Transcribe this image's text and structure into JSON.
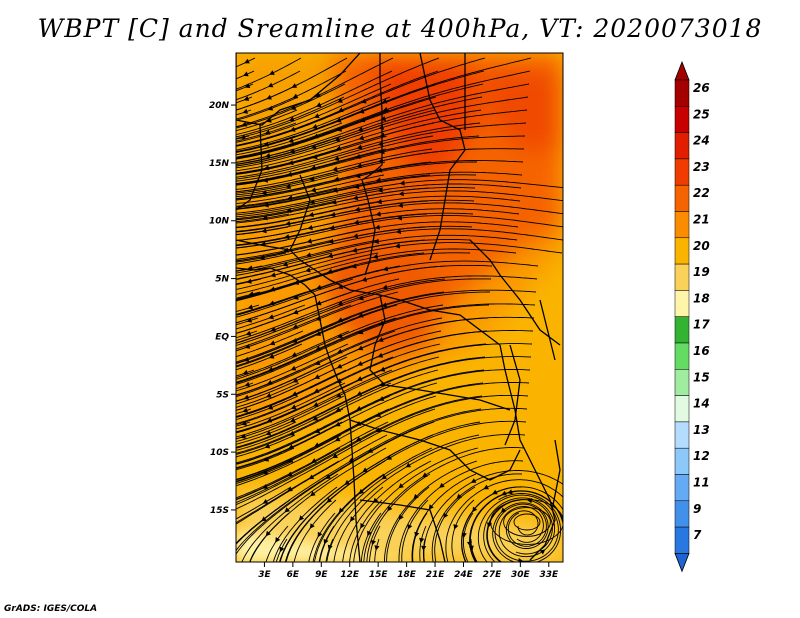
{
  "title": "WBPT [C] and Sreamline at 400hPa, VT: 2020073018",
  "credit": "GrADS: IGES/COLA",
  "map": {
    "lon_range": [
      0,
      34.5
    ],
    "lat_range": [
      -19.5,
      24.5
    ],
    "lat_ticks": [
      {
        "value": 20,
        "label": "20N"
      },
      {
        "value": 15,
        "label": "15N"
      },
      {
        "value": 10,
        "label": "10N"
      },
      {
        "value": 5,
        "label": "5N"
      },
      {
        "value": 0,
        "label": "EQ"
      },
      {
        "value": -5,
        "label": "5S"
      },
      {
        "value": -10,
        "label": "10S"
      },
      {
        "value": -15,
        "label": "15S"
      }
    ],
    "lon_ticks": [
      {
        "value": 3,
        "label": "3E"
      },
      {
        "value": 6,
        "label": "6E"
      },
      {
        "value": 9,
        "label": "9E"
      },
      {
        "value": 12,
        "label": "12E"
      },
      {
        "value": 15,
        "label": "15E"
      },
      {
        "value": 18,
        "label": "18E"
      },
      {
        "value": 21,
        "label": "21E"
      },
      {
        "value": 24,
        "label": "24E"
      },
      {
        "value": 27,
        "label": "27E"
      },
      {
        "value": 30,
        "label": "30E"
      },
      {
        "value": 33,
        "label": "33E"
      }
    ]
  },
  "colorbar": {
    "levels": [
      {
        "label": "26",
        "color": "#a50000"
      },
      {
        "label": "25",
        "color": "#c80000"
      },
      {
        "label": "24",
        "color": "#e11e00"
      },
      {
        "label": "23",
        "color": "#f03c00"
      },
      {
        "label": "22",
        "color": "#f56400"
      },
      {
        "label": "21",
        "color": "#fa8c00"
      },
      {
        "label": "20",
        "color": "#fab400"
      },
      {
        "label": "19",
        "color": "#fad25a"
      },
      {
        "label": "18",
        "color": "#fff5aa"
      },
      {
        "label": "17",
        "color": "#32b432"
      },
      {
        "label": "16",
        "color": "#64dc64"
      },
      {
        "label": "15",
        "color": "#a0eca0"
      },
      {
        "label": "14",
        "color": "#e1fae1"
      },
      {
        "label": "13",
        "color": "#b4dcff"
      },
      {
        "label": "12",
        "color": "#8cc8fa"
      },
      {
        "label": "11",
        "color": "#64aaf5"
      },
      {
        "label": "9",
        "color": "#4191eb"
      },
      {
        "label": "7",
        "color": "#2878e1"
      }
    ],
    "top_arrow_color": "#a50000",
    "bottom_arrow_color": "#1e64d2"
  }
}
